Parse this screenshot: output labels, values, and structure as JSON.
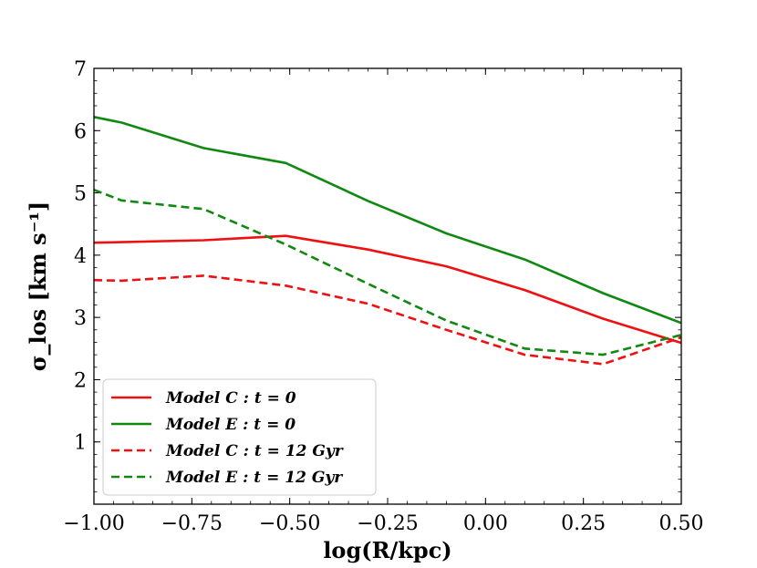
{
  "chart_data": {
    "type": "line",
    "title": "",
    "xlabel": "log(R/kpc)",
    "ylabel": "σ_los [km s⁻¹]",
    "xlim": [
      -1.0,
      0.5
    ],
    "ylim": [
      0,
      7
    ],
    "xticks": [
      "−1.00",
      "−0.75",
      "−0.50",
      "−0.25",
      "0.00",
      "0.25",
      "0.50"
    ],
    "yticks": [
      "1",
      "2",
      "3",
      "4",
      "5",
      "6",
      "7"
    ],
    "legend_position": "bottom-left",
    "series": [
      {
        "name": "Model C : t = 0",
        "color": "#ee1111",
        "dash": "solid",
        "x": [
          -1.0,
          -0.72,
          -0.51,
          -0.3,
          -0.1,
          0.1,
          0.3,
          0.5
        ],
        "y": [
          4.2,
          4.24,
          4.31,
          4.09,
          3.82,
          3.44,
          2.98,
          2.59
        ]
      },
      {
        "name": "Model E : t = 0",
        "color": "#118811",
        "dash": "solid",
        "x": [
          -1.0,
          -0.93,
          -0.72,
          -0.51,
          -0.3,
          -0.1,
          0.1,
          0.3,
          0.5
        ],
        "y": [
          6.22,
          6.13,
          5.72,
          5.48,
          4.87,
          4.35,
          3.93,
          3.39,
          2.91
        ]
      },
      {
        "name": "Model C :  t = 12 Gyr",
        "color": "#ee1111",
        "dash": "dashed",
        "x": [
          -1.0,
          -0.93,
          -0.72,
          -0.51,
          -0.3,
          -0.1,
          0.1,
          0.3,
          0.5
        ],
        "y": [
          3.6,
          3.59,
          3.67,
          3.51,
          3.22,
          2.8,
          2.4,
          2.25,
          2.68
        ]
      },
      {
        "name": "Model E :  t = 12 Gyr",
        "color": "#118811",
        "dash": "dashed",
        "x": [
          -1.0,
          -0.93,
          -0.72,
          -0.51,
          -0.3,
          -0.1,
          0.1,
          0.3,
          0.5
        ],
        "y": [
          5.05,
          4.88,
          4.74,
          4.17,
          3.54,
          2.95,
          2.5,
          2.4,
          2.72
        ]
      }
    ]
  }
}
